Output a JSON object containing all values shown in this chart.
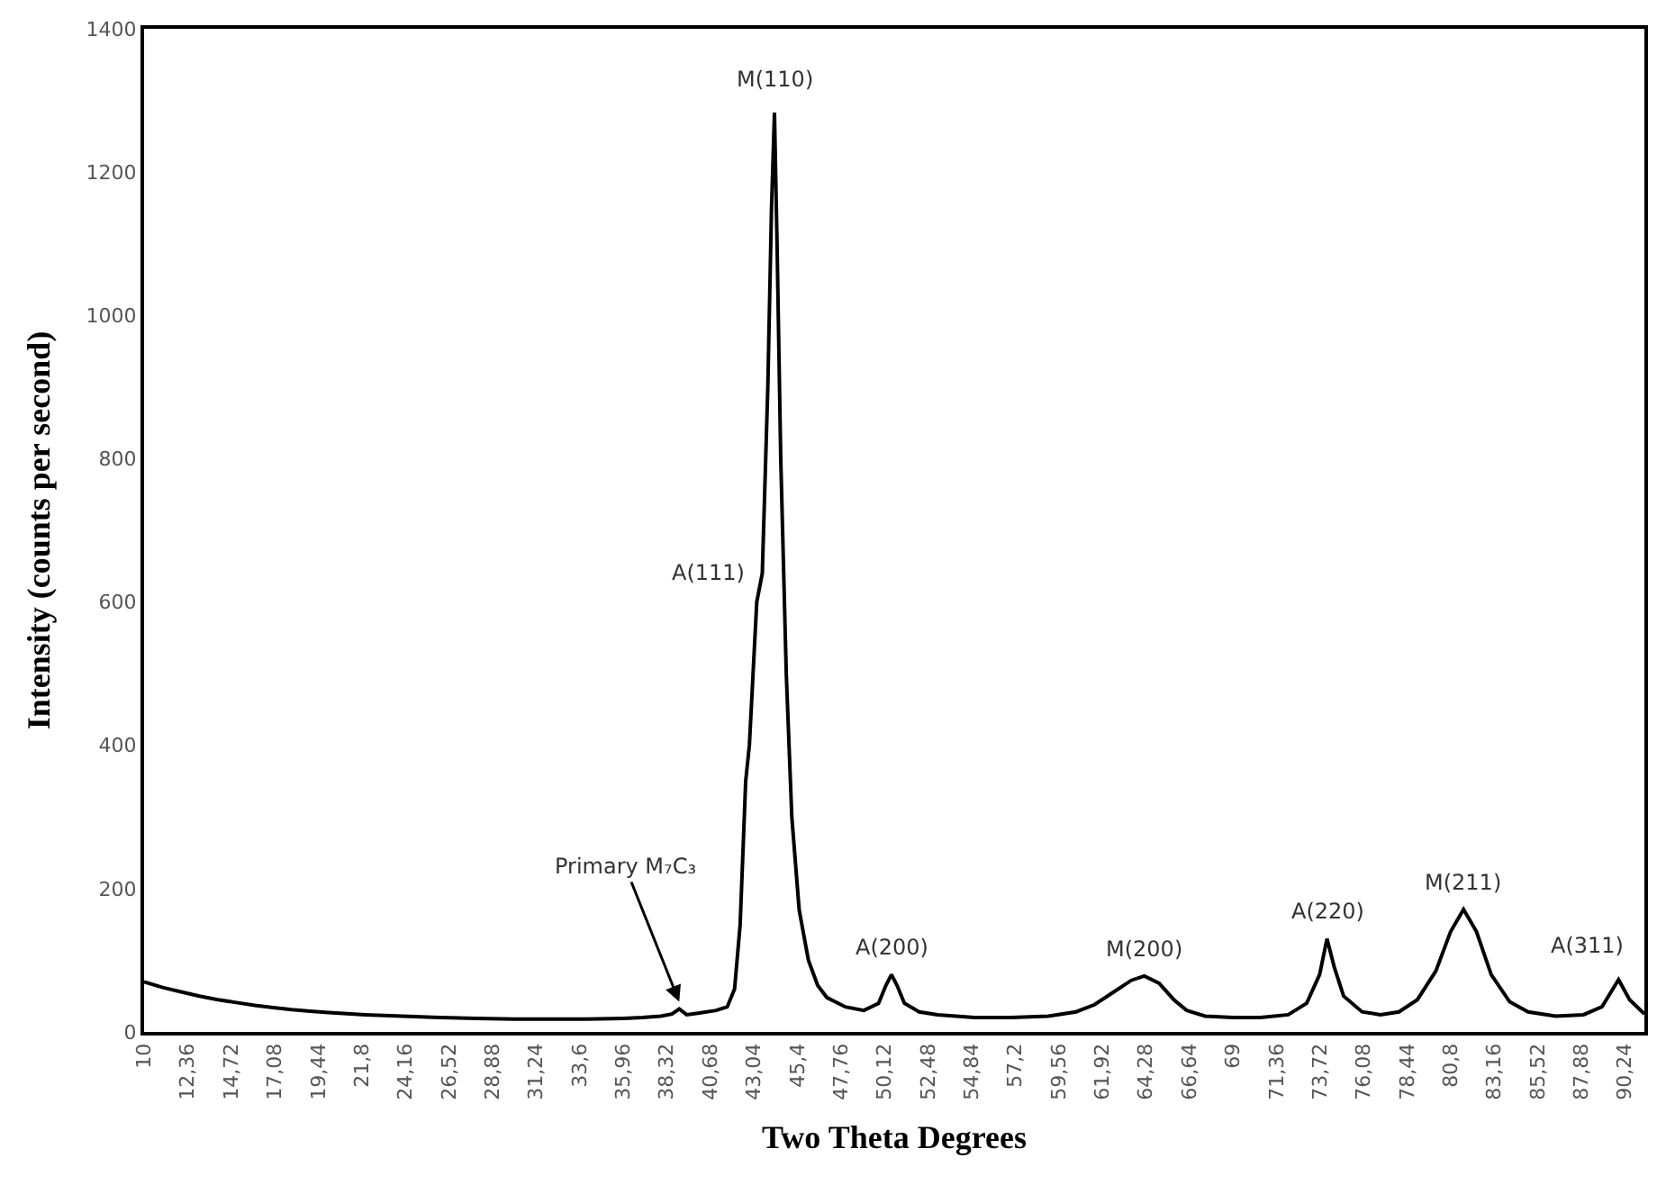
{
  "chart_data": {
    "type": "line",
    "xlabel": "Two Theta Degrees",
    "ylabel": "Intensity (counts per second)",
    "x": [
      10,
      11,
      12,
      13,
      14,
      15,
      16,
      17,
      18,
      19,
      20,
      22,
      24,
      26,
      28,
      30,
      32,
      34,
      36,
      37,
      38,
      38.6,
      39.0,
      39.4,
      40,
      41,
      41.6,
      42.0,
      42.3,
      42.6,
      42.8,
      43.2,
      43.5,
      43.8,
      44.0,
      44.16,
      44.3,
      44.5,
      44.8,
      45.1,
      45.5,
      46,
      46.5,
      47,
      48,
      49,
      49.8,
      50.2,
      50.5,
      50.8,
      51.2,
      52,
      53,
      55,
      57,
      59,
      60.5,
      61.5,
      62.5,
      63.5,
      64.2,
      65,
      65.8,
      66.5,
      67.5,
      69,
      70.5,
      72,
      73,
      73.7,
      74.1,
      74.5,
      75,
      76,
      77,
      78,
      79,
      80,
      80.8,
      81.5,
      82.2,
      83,
      84,
      85,
      86.5,
      88,
      89,
      89.9,
      90.5,
      91.3
    ],
    "series": [
      {
        "color": "#000000",
        "values": [
          70,
          62,
          56,
          50,
          45,
          41,
          37,
          34,
          31,
          29,
          27,
          24,
          22,
          20,
          19,
          18,
          18,
          18,
          19,
          20,
          22,
          25,
          32,
          24,
          26,
          30,
          35,
          60,
          150,
          350,
          400,
          600,
          640,
          900,
          1150,
          1283,
          1100,
          800,
          500,
          300,
          170,
          100,
          65,
          48,
          35,
          30,
          40,
          65,
          80,
          65,
          40,
          28,
          24,
          20,
          20,
          22,
          28,
          38,
          55,
          72,
          78,
          68,
          45,
          30,
          22,
          20,
          20,
          24,
          40,
          80,
          130,
          90,
          50,
          28,
          24,
          28,
          45,
          85,
          140,
          171,
          140,
          80,
          42,
          28,
          22,
          24,
          35,
          73,
          45,
          25
        ]
      }
    ],
    "xlim": [
      10,
      91.3
    ],
    "ylim": [
      0,
      1400
    ],
    "yticks": [
      0,
      200,
      400,
      600,
      800,
      1000,
      1200,
      1400
    ],
    "xticks": [
      {
        "value": 10,
        "label": "10"
      },
      {
        "value": 12.36,
        "label": "12,36"
      },
      {
        "value": 14.72,
        "label": "14,72"
      },
      {
        "value": 17.08,
        "label": "17,08"
      },
      {
        "value": 19.44,
        "label": "19,44"
      },
      {
        "value": 21.8,
        "label": "21,8"
      },
      {
        "value": 24.16,
        "label": "24,16"
      },
      {
        "value": 26.52,
        "label": "26,52"
      },
      {
        "value": 28.88,
        "label": "28,88"
      },
      {
        "value": 31.24,
        "label": "31,24"
      },
      {
        "value": 33.6,
        "label": "33,6"
      },
      {
        "value": 35.96,
        "label": "35,96"
      },
      {
        "value": 38.32,
        "label": "38,32"
      },
      {
        "value": 40.68,
        "label": "40,68"
      },
      {
        "value": 43.04,
        "label": "43,04"
      },
      {
        "value": 45.4,
        "label": "45,4"
      },
      {
        "value": 47.76,
        "label": "47,76"
      },
      {
        "value": 50.12,
        "label": "50,12"
      },
      {
        "value": 52.48,
        "label": "52,48"
      },
      {
        "value": 54.84,
        "label": "54,84"
      },
      {
        "value": 57.2,
        "label": "57,2"
      },
      {
        "value": 59.56,
        "label": "59,56"
      },
      {
        "value": 61.92,
        "label": "61,92"
      },
      {
        "value": 64.28,
        "label": "64,28"
      },
      {
        "value": 66.64,
        "label": "66,64"
      },
      {
        "value": 69,
        "label": "69"
      },
      {
        "value": 71.36,
        "label": "71,36"
      },
      {
        "value": 73.72,
        "label": "73,72"
      },
      {
        "value": 76.08,
        "label": "76,08"
      },
      {
        "value": 78.44,
        "label": "78,44"
      },
      {
        "value": 80.8,
        "label": "80,8"
      },
      {
        "value": 83.16,
        "label": "83,16"
      },
      {
        "value": 85.52,
        "label": "85,52"
      },
      {
        "value": 87.88,
        "label": "87,88"
      },
      {
        "value": 90.24,
        "label": "90,24"
      }
    ],
    "legend": false,
    "marker": "none",
    "line_style": "solid",
    "annotations": [
      {
        "text": "M(110)",
        "x": 44.16,
        "y": 1283
      },
      {
        "text": "A(111)",
        "x": 43.5,
        "y": 640
      },
      {
        "text": "Primary M₇C₃",
        "x": 39.0,
        "y": 32
      },
      {
        "text": "A(200)",
        "x": 50.5,
        "y": 80
      },
      {
        "text": "M(200)",
        "x": 64.2,
        "y": 78
      },
      {
        "text": "A(220)",
        "x": 74.1,
        "y": 130
      },
      {
        "text": "M(211)",
        "x": 81.5,
        "y": 171
      },
      {
        "text": "A(311)",
        "x": 89.9,
        "y": 73
      }
    ]
  }
}
